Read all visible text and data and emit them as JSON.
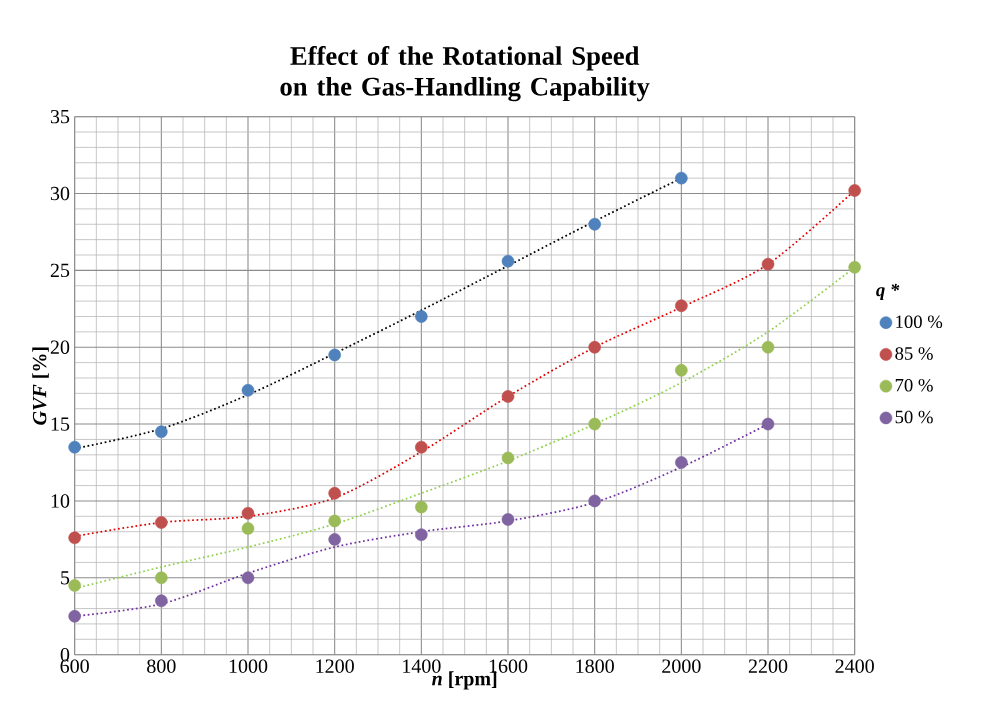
{
  "chart_data": {
    "type": "scatter",
    "title": "Effect of the Rotational Speed on the Gas-Handling Capability",
    "xlabel": "*n* [rpm]",
    "ylabel": "*GVF* [%]",
    "legend_title": "q *",
    "xlim": [
      600,
      2400
    ],
    "xticks": [
      600,
      800,
      1000,
      1200,
      1400,
      1600,
      1800,
      2000,
      2200,
      2400
    ],
    "ylim": [
      0,
      35
    ],
    "yticks": [
      0,
      5,
      10,
      15,
      20,
      25,
      30,
      35
    ],
    "grid": true,
    "legend": "right",
    "marker": "circle",
    "series": [
      {
        "name": "100 %",
        "color": "#4f81bd",
        "x": [
          600,
          800,
          1000,
          1200,
          1400,
          1600,
          1800,
          2000
        ],
        "values": [
          13.5,
          14.5,
          17.2,
          19.5,
          22.0,
          25.6,
          28.0,
          31.0
        ]
      },
      {
        "name": "85 %",
        "color": "#c0504d",
        "x": [
          600,
          800,
          1000,
          1200,
          1400,
          1600,
          1800,
          2000,
          2200,
          2400
        ],
        "values": [
          7.6,
          8.6,
          9.2,
          10.5,
          13.5,
          16.8,
          20.0,
          22.7,
          25.4,
          30.2
        ]
      },
      {
        "name": "70 %",
        "color": "#9bbb59",
        "x": [
          600,
          800,
          1000,
          1200,
          1400,
          1600,
          1800,
          2000,
          2200,
          2400
        ],
        "values": [
          4.5,
          5.0,
          8.2,
          8.7,
          9.6,
          12.8,
          15.0,
          18.5,
          20.0,
          25.2
        ]
      },
      {
        "name": "50 %",
        "color": "#8064a2",
        "x": [
          600,
          800,
          1000,
          1200,
          1400,
          1600,
          1800,
          2000,
          2200
        ],
        "values": [
          2.5,
          3.5,
          5.0,
          7.5,
          7.8,
          8.8,
          10.0,
          12.5,
          15.0
        ]
      },
      {
        "type": "line",
        "line_style": "dotted",
        "marker": "none",
        "color": "#000000",
        "x": [
          600,
          800,
          1000,
          1200,
          1400,
          1600,
          1800,
          2000
        ],
        "values": [
          13.4,
          14.7,
          16.9,
          19.6,
          22.4,
          25.3,
          28.2,
          31.0
        ]
      },
      {
        "type": "line",
        "line_style": "dotted",
        "marker": "none",
        "color": "#e00000",
        "x": [
          600,
          800,
          1000,
          1200,
          1400,
          1600,
          1800,
          2000,
          2200,
          2400
        ],
        "values": [
          7.7,
          8.6,
          9.0,
          10.2,
          13.2,
          16.8,
          20.0,
          22.6,
          25.4,
          30.2
        ]
      },
      {
        "type": "line",
        "line_style": "dotted",
        "marker": "none",
        "color": "#92d050",
        "x": [
          600,
          800,
          1000,
          1200,
          1400,
          1600,
          1800,
          2000,
          2200,
          2400
        ],
        "values": [
          4.3,
          5.7,
          7.0,
          8.5,
          10.5,
          12.6,
          15.0,
          17.7,
          21.0,
          25.2
        ]
      },
      {
        "type": "line",
        "line_style": "dotted",
        "marker": "none",
        "color": "#7030a0",
        "x": [
          600,
          800,
          1000,
          1200,
          1400,
          1600,
          1800,
          2000,
          2200
        ],
        "values": [
          2.5,
          3.3,
          5.3,
          7.0,
          8.0,
          8.7,
          9.9,
          12.2,
          15.0
        ]
      }
    ]
  }
}
